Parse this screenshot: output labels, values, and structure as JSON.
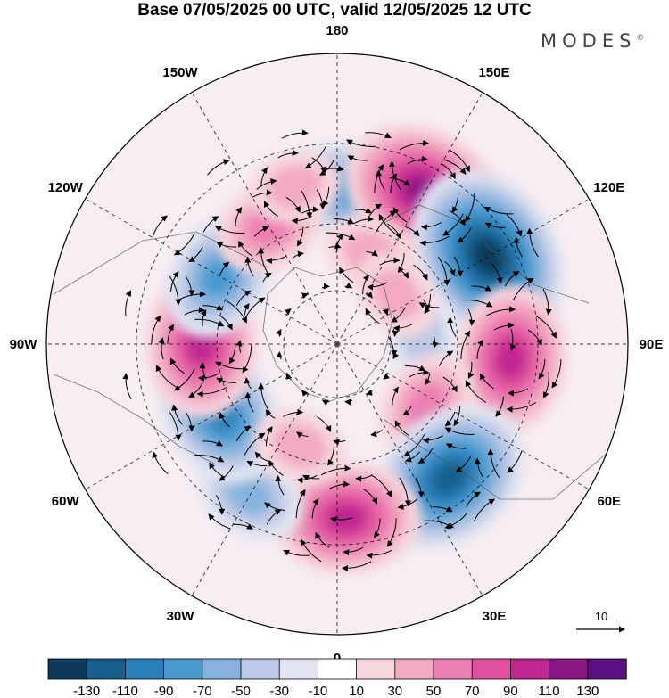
{
  "title": "Base 07/05/2025 00 UTC, valid 12/05/2025 12 UTC",
  "brand": "MODES",
  "brand_mark": "©",
  "longitude_labels": [
    "180",
    "150E",
    "120E",
    "90E",
    "60E",
    "30E",
    "0",
    "30W",
    "60W",
    "90W",
    "120W",
    "150W"
  ],
  "vector_reference": "10",
  "colorbar": {
    "ticks": [
      "-130",
      "-110",
      "-90",
      "-70",
      "-50",
      "-30",
      "-10",
      "10",
      "30",
      "50",
      "70",
      "90",
      "110",
      "130"
    ],
    "colors": [
      "#0d3a5c",
      "#15608f",
      "#2a7fb8",
      "#4a9ad0",
      "#86b3dd",
      "#bdc9e6",
      "#e2e5f1",
      "#ffffff",
      "#f7d6dd",
      "#f2aac2",
      "#ec7fb1",
      "#e0529f",
      "#c12790",
      "#8a1584",
      "#5a1080"
    ]
  },
  "chart_data": {
    "type": "heatmap",
    "projection": "north polar stereographic",
    "anomalies": [
      {
        "name": "anomaly-1",
        "lon": 175,
        "lat": 50,
        "value": -70
      },
      {
        "name": "anomaly-2",
        "lon": 150,
        "lat": 45,
        "value": 110
      },
      {
        "name": "anomaly-3",
        "lon": 120,
        "lat": 45,
        "value": -130
      },
      {
        "name": "anomaly-4",
        "lon": 85,
        "lat": 45,
        "value": 90
      },
      {
        "name": "anomaly-5",
        "lon": 95,
        "lat": 68,
        "value": -30
      },
      {
        "name": "anomaly-6",
        "lon": 55,
        "lat": 62,
        "value": 50
      },
      {
        "name": "anomaly-7",
        "lon": 40,
        "lat": 45,
        "value": -110
      },
      {
        "name": "anomaly-8",
        "lon": 3,
        "lat": 45,
        "value": 90
      },
      {
        "name": "anomaly-9",
        "lon": -30,
        "lat": 45,
        "value": -50
      },
      {
        "name": "anomaly-10",
        "lon": -60,
        "lat": 55,
        "value": -90
      },
      {
        "name": "anomaly-11",
        "lon": -90,
        "lat": 55,
        "value": 90
      },
      {
        "name": "anomaly-12",
        "lon": -120,
        "lat": 55,
        "value": -70
      },
      {
        "name": "anomaly-13",
        "lon": -150,
        "lat": 55,
        "value": 50
      },
      {
        "name": "anomaly-14",
        "lon": -165,
        "lat": 48,
        "value": 30
      },
      {
        "name": "anomaly-15",
        "lon": -20,
        "lat": 62,
        "value": 30
      },
      {
        "name": "anomaly-16",
        "lon": 160,
        "lat": 65,
        "value": 30
      },
      {
        "name": "anomaly-17",
        "lon": 130,
        "lat": 70,
        "value": 30
      }
    ],
    "colorbar_range": [
      -130,
      130
    ]
  }
}
